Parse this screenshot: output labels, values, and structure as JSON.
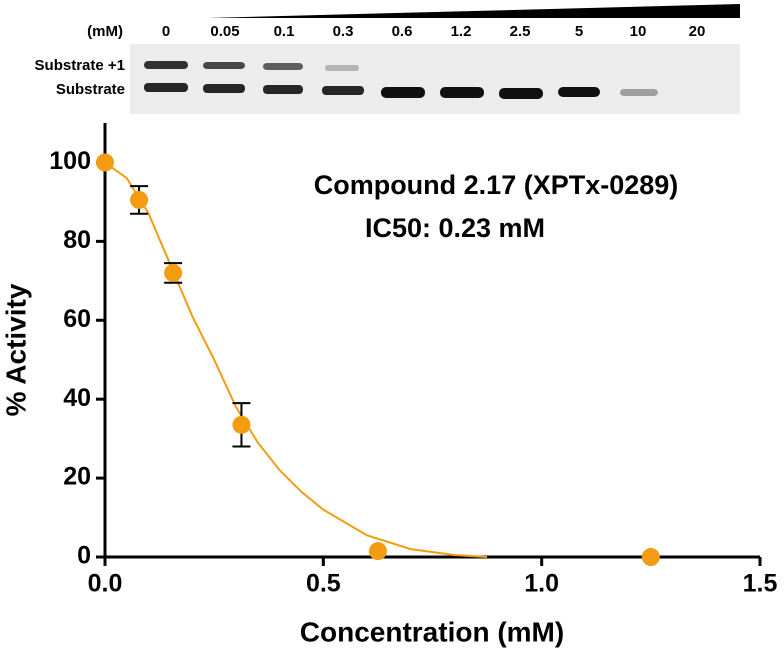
{
  "gel": {
    "unit": "(mM)",
    "lanes": [
      "0",
      "0.05",
      "0.1",
      "0.3",
      "0.6",
      "1.2",
      "2.5",
      "5",
      "10",
      "20"
    ],
    "bands": [
      "Substrate +1",
      "Substrate"
    ]
  },
  "chart_data": {
    "type": "scatter",
    "title": "Compound 2.17 (XPTx-0289)",
    "subtitle": "IC50: 0.23 mM",
    "x_label": "Concentration (mM)",
    "y_label": "% Activity",
    "color": "#f39c12",
    "x": [
      0,
      0.078,
      0.156,
      0.3125,
      0.625,
      1.25
    ],
    "values": [
      100,
      90.5,
      72,
      33.5,
      1.5,
      0
    ],
    "errors": [
      0,
      3.5,
      2.5,
      5.5,
      0,
      0
    ],
    "fit": {
      "x": [
        0,
        0.05,
        0.1,
        0.15,
        0.2,
        0.25,
        0.3,
        0.35,
        0.4,
        0.45,
        0.5,
        0.6,
        0.7,
        0.8,
        0.875
      ],
      "values": [
        100,
        96,
        87,
        74,
        61,
        50,
        38,
        29,
        22,
        16.5,
        12,
        5.5,
        2,
        0.5,
        0
      ]
    },
    "xlim": [
      0,
      1.5
    ],
    "xticks": [
      {
        "value": 0,
        "label": "0.0"
      },
      0.5,
      {
        "value": 1,
        "label": "1.0"
      },
      1.5
    ],
    "ylim": [
      0,
      110
    ],
    "yticks": [
      0,
      20,
      40,
      60,
      80,
      100
    ],
    "grid": false
  }
}
